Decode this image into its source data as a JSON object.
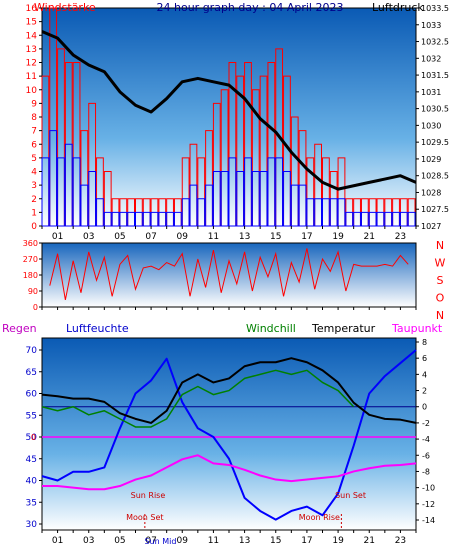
{
  "title": "24 hour graph day : 04 April 2023",
  "chart_data": [
    {
      "type": "line",
      "panel": "wind-pressure",
      "left_label": "Windstärke",
      "right_label": "Luftdruck",
      "left_ylim": [
        0,
        16
      ],
      "left_ticks": [
        "0",
        "1",
        "2",
        "3",
        "4",
        "5",
        "6",
        "7",
        "8",
        "9",
        "10",
        "11",
        "12",
        "13",
        "14",
        "15",
        "16"
      ],
      "right_ylim": [
        1027,
        1033.5
      ],
      "right_ticks": [
        "1027",
        "1027.5",
        "1028",
        "1028.5",
        "1029",
        "1029.5",
        "1030",
        "1030.5",
        "1031",
        "1031.5",
        "1032",
        "1032.5",
        "1033",
        "1033.5"
      ],
      "x_ticks": [
        "01",
        "03",
        "05",
        "07",
        "09",
        "11",
        "13",
        "15",
        "17",
        "19",
        "21",
        "23"
      ],
      "series": [
        {
          "axis": "right",
          "color": "#000000",
          "x": [
            0,
            1,
            2,
            3,
            4,
            5,
            6,
            7,
            8,
            9,
            10,
            11,
            12,
            13,
            14,
            15,
            16,
            17,
            18,
            19,
            20,
            21,
            22,
            23,
            24
          ],
          "values": [
            1032.8,
            1032.6,
            1032.1,
            1031.8,
            1031.6,
            1031.0,
            1030.6,
            1030.4,
            1030.8,
            1031.3,
            1031.4,
            1031.3,
            1031.2,
            1030.8,
            1030.2,
            1029.8,
            1029.2,
            1028.7,
            1028.3,
            1028.1,
            1028.2,
            1028.3,
            1028.4,
            1028.5,
            1028.3
          ]
        },
        {
          "axis": "left",
          "color": "#ff0000",
          "x": [
            0,
            0.5,
            1,
            1.5,
            2,
            2.5,
            3,
            3.5,
            4,
            4.5,
            5,
            5.5,
            6,
            6.5,
            7,
            7.5,
            8,
            8.5,
            9,
            9.5,
            10,
            10.5,
            11,
            11.5,
            12,
            12.5,
            13,
            13.5,
            14,
            14.5,
            15,
            15.5,
            16,
            16.5,
            17,
            17.5,
            18,
            18.5,
            19,
            19.5,
            20,
            20.5,
            21,
            21.5,
            22,
            22.5,
            23,
            23.5
          ],
          "values": [
            11,
            16,
            13,
            12,
            12,
            7,
            9,
            5,
            4,
            2,
            2,
            2,
            2,
            2,
            2,
            2,
            2,
            2,
            5,
            6,
            5,
            7,
            9,
            10,
            12,
            11,
            12,
            10,
            11,
            12,
            13,
            11,
            8,
            7,
            5,
            6,
            5,
            4,
            5,
            2,
            2,
            2,
            2,
            2,
            2,
            2,
            2,
            2
          ]
        },
        {
          "axis": "left",
          "color": "#0000ff",
          "x": [
            0,
            0.5,
            1,
            1.5,
            2,
            2.5,
            3,
            3.5,
            4,
            4.5,
            5,
            5.5,
            6,
            6.5,
            7,
            7.5,
            8,
            8.5,
            9,
            9.5,
            10,
            10.5,
            11,
            11.5,
            12,
            12.5,
            13,
            13.5,
            14,
            14.5,
            15,
            15.5,
            16,
            16.5,
            17,
            17.5,
            18,
            18.5,
            19,
            19.5,
            20,
            20.5,
            21,
            21.5,
            22,
            22.5,
            23,
            23.5
          ],
          "values": [
            5,
            7,
            5,
            6,
            5,
            3,
            4,
            2,
            1,
            1,
            1,
            1,
            1,
            1,
            1,
            1,
            1,
            1,
            2,
            3,
            2,
            3,
            4,
            4,
            5,
            4,
            5,
            4,
            4,
            5,
            5,
            4,
            3,
            3,
            2,
            2,
            2,
            2,
            2,
            1,
            1,
            1,
            1,
            1,
            1,
            1,
            1,
            1
          ]
        }
      ]
    },
    {
      "type": "line",
      "panel": "wind-direction",
      "ylim": [
        0,
        360
      ],
      "left_ticks": [
        "0",
        "90",
        "180",
        "270",
        "360"
      ],
      "right_labels": [
        "N",
        "W",
        "S",
        "O",
        "N"
      ],
      "series": [
        {
          "color": "#ff0000",
          "x": [
            0.5,
            1,
            1.5,
            2,
            2.5,
            3,
            3.5,
            4,
            4.5,
            5,
            5.5,
            6,
            6.5,
            7,
            7.5,
            8,
            8.5,
            9,
            9.5,
            10,
            10.5,
            11,
            11.5,
            12,
            12.5,
            13,
            13.5,
            14,
            14.5,
            15,
            15.5,
            16,
            16.5,
            17,
            17.5,
            18,
            18.5,
            19,
            19.5,
            20,
            20.5,
            21,
            21.5,
            22,
            22.5,
            23,
            23.5
          ],
          "values": [
            120,
            300,
            40,
            260,
            80,
            310,
            150,
            280,
            60,
            240,
            290,
            100,
            220,
            230,
            210,
            250,
            230,
            300,
            60,
            270,
            110,
            320,
            80,
            260,
            130,
            310,
            90,
            280,
            170,
            300,
            60,
            250,
            140,
            330,
            100,
            270,
            200,
            310,
            90,
            240,
            230,
            230,
            230,
            240,
            230,
            290,
            240
          ]
        }
      ]
    },
    {
      "type": "line",
      "panel": "temperature-humidity",
      "labels": {
        "rain": "Regen",
        "humidity": "Luftfeuchte",
        "windchill": "Windchill",
        "temperature": "Temperatur",
        "dewpoint": "Taupunkt"
      },
      "left_ylim": [
        30,
        70
      ],
      "left_ticks": [
        "30",
        "35",
        "40",
        "45",
        "50",
        "55",
        "60",
        "65",
        "70"
      ],
      "right_ylim": [
        -14,
        8
      ],
      "right_ticks": [
        "-14",
        "-12",
        "-10",
        "-8",
        "-6",
        "-4",
        "-2",
        "0",
        "2",
        "4",
        "6",
        "8"
      ],
      "rain_zero_label": "0",
      "x_ticks": [
        "01",
        "03",
        "05",
        "07",
        "09",
        "11",
        "13",
        "15",
        "17",
        "19",
        "21",
        "23"
      ],
      "annotations": [
        {
          "text": "Sun Rise",
          "x": 6.8
        },
        {
          "text": "Sun Set",
          "x": 19.8
        },
        {
          "text": "Moon Set",
          "x": 6.6
        },
        {
          "text": "Moon Rise",
          "x": 17.8
        },
        {
          "text": "Sun Mid",
          "x": 7.6
        }
      ],
      "series": [
        {
          "name": "Temperatur",
          "axis": "right",
          "color": "#000000",
          "x": [
            0,
            1,
            2,
            3,
            4,
            5,
            6,
            7,
            8,
            9,
            10,
            11,
            12,
            13,
            14,
            15,
            16,
            17,
            18,
            19,
            20,
            21,
            22,
            23,
            24
          ],
          "values": [
            1.5,
            1.3,
            1.0,
            1.0,
            0.6,
            -0.8,
            -1.5,
            -2.0,
            -0.5,
            3.0,
            4.0,
            3.0,
            3.5,
            5.0,
            5.5,
            5.5,
            6.0,
            5.5,
            4.5,
            3.0,
            0.5,
            -1.0,
            -1.5,
            -1.6,
            -2.0
          ]
        },
        {
          "name": "Windchill",
          "axis": "right",
          "color": "#008000",
          "x": [
            0,
            1,
            2,
            3,
            4,
            5,
            6,
            7,
            8,
            9,
            10,
            11,
            12,
            13,
            14,
            15,
            16,
            17,
            18,
            19,
            20
          ],
          "values": [
            0,
            -0.5,
            0,
            -1,
            -0.5,
            -1.5,
            -2.5,
            -2.5,
            -1.5,
            1.5,
            2.5,
            1.5,
            2,
            3.5,
            4,
            4.5,
            4,
            4.5,
            3,
            2,
            0
          ]
        },
        {
          "name": "Taupunkt",
          "axis": "right",
          "color": "#ff00ff",
          "x": [
            0,
            1,
            2,
            3,
            4,
            5,
            6,
            7,
            8,
            9,
            10,
            11,
            12,
            13,
            14,
            15,
            16,
            17,
            18,
            19,
            20,
            21,
            22,
            23,
            24
          ],
          "values": [
            -9.8,
            -9.8,
            -10,
            -10.2,
            -10.2,
            -9.8,
            -9,
            -8.5,
            -7.5,
            -6.5,
            -6,
            -7,
            -7.2,
            -7.8,
            -8.5,
            -9,
            -9.2,
            -9,
            -8.8,
            -8.6,
            -8,
            -7.6,
            -7.3,
            -7.2,
            -7.0
          ]
        },
        {
          "name": "Luftfeuchte",
          "axis": "left",
          "color": "#0000ff",
          "x": [
            0,
            1,
            2,
            3,
            4,
            5,
            6,
            7,
            8,
            9,
            10,
            11,
            12,
            13,
            14,
            15,
            16,
            17,
            18,
            19,
            20,
            21,
            22,
            23,
            24
          ],
          "values": [
            41,
            40,
            42,
            42,
            43,
            52,
            60,
            63,
            68,
            58,
            52,
            50,
            45,
            36,
            33,
            31,
            33,
            34,
            32,
            37,
            48,
            60,
            64,
            67,
            70
          ]
        }
      ]
    }
  ]
}
